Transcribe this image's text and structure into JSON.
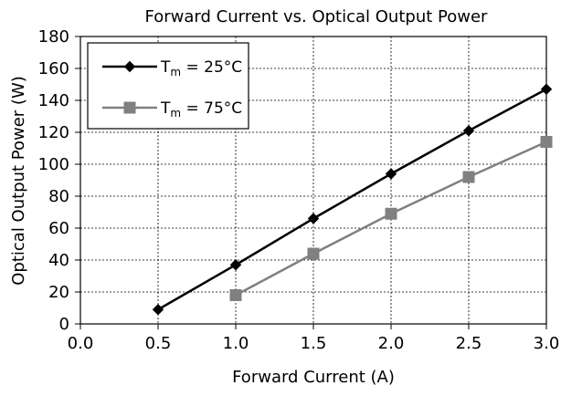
{
  "chart_data": {
    "type": "line",
    "title": "Forward Current vs. Optical Output Power",
    "xlabel": "Forward Current (A)",
    "ylabel": "Optical Output Power (W)",
    "xlim": [
      0.0,
      3.0
    ],
    "ylim": [
      0,
      180
    ],
    "x_ticks": [
      "0.0",
      "0.5",
      "1.0",
      "1.5",
      "2.0",
      "2.5",
      "3.0"
    ],
    "y_ticks": [
      "0",
      "20",
      "40",
      "60",
      "80",
      "100",
      "120",
      "140",
      "160",
      "180"
    ],
    "grid": true,
    "legend_position": "top-left",
    "series": [
      {
        "name": "T_m = 25°C",
        "label_main": "T",
        "label_sub": "m",
        "label_rest": " = 25°C",
        "color": "#000000",
        "marker": "diamond",
        "x": [
          0.5,
          1.0,
          1.5,
          2.0,
          2.5,
          3.0
        ],
        "y": [
          9,
          37,
          66,
          94,
          121,
          147
        ]
      },
      {
        "name": "T_m = 75°C",
        "label_main": "T",
        "label_sub": "m",
        "label_rest": " = 75°C",
        "color": "#808080",
        "marker": "square",
        "x": [
          1.0,
          1.5,
          2.0,
          2.5,
          3.0
        ],
        "y": [
          18,
          44,
          69,
          92,
          114
        ]
      }
    ]
  }
}
